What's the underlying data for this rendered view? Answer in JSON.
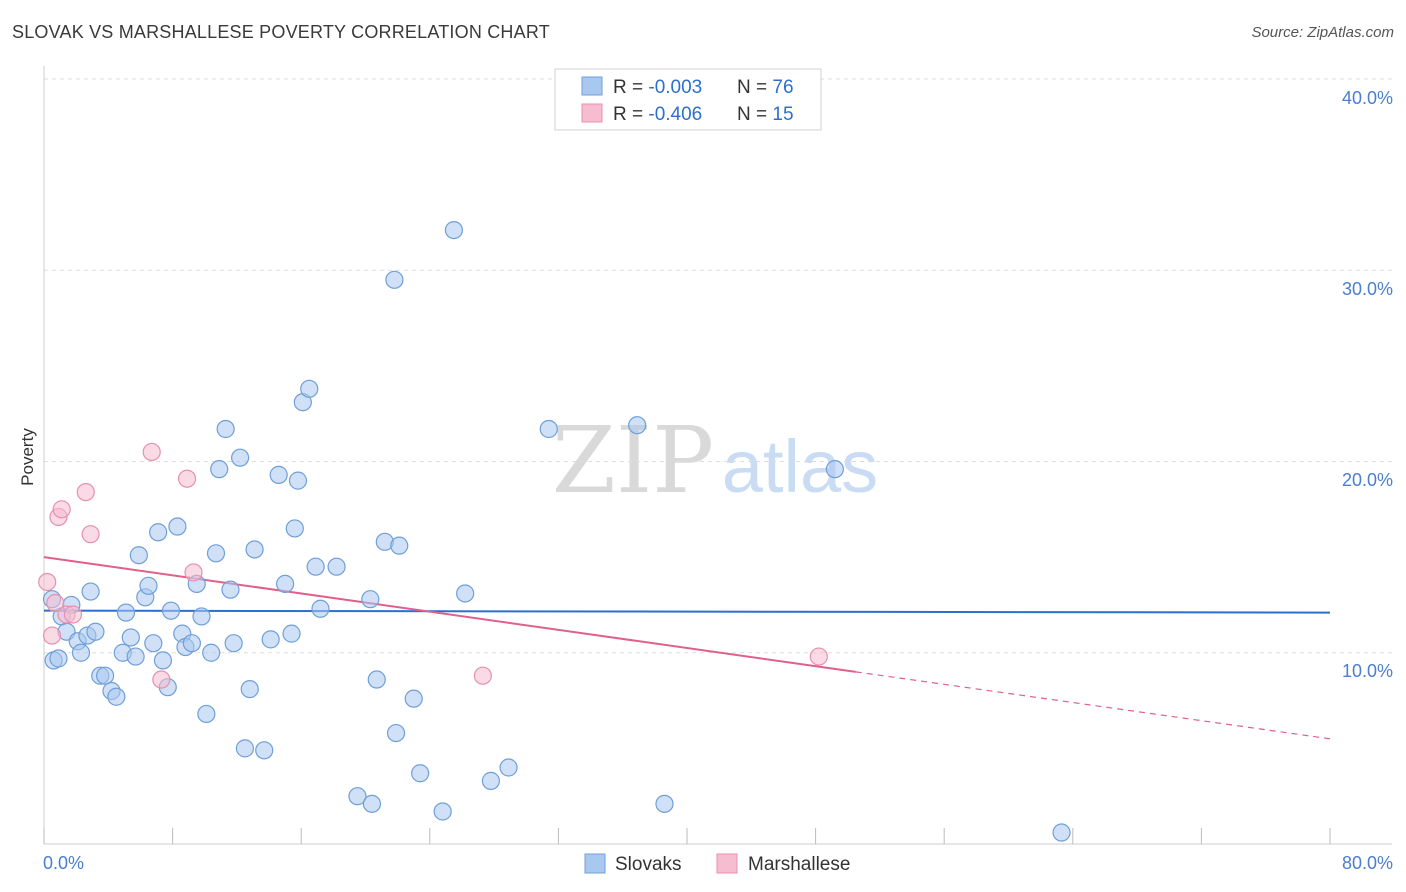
{
  "header": {
    "title": "SLOVAK VS MARSHALLESE POVERTY CORRELATION CHART",
    "source": "Source: ZipAtlas.com"
  },
  "watermark": {
    "part1": "ZIP",
    "part2": "atlas"
  },
  "colors": {
    "slovaks_fill": "#a9c8f0",
    "slovaks_stroke": "#6f9fd8",
    "slovaks_line": "#2d6fcc",
    "marshallese_fill": "#f6bcd0",
    "marshallese_stroke": "#e890ae",
    "marshallese_line": "#e0608a",
    "tick_label": "#4a7fcc",
    "grid": "#dddddd"
  },
  "legend": {
    "rows": [
      {
        "r_label": "R = ",
        "r_value": "-0.003",
        "n_label": "N = ",
        "n_value": "76"
      },
      {
        "r_label": "R = ",
        "r_value": "-0.406",
        "n_label": "N = ",
        "n_value": "15"
      }
    ]
  },
  "bottom_legend": {
    "items": [
      "Slovaks",
      "Marshallese"
    ]
  },
  "chart_data": {
    "type": "scatter",
    "ylabel": "Poverty",
    "xlim": [
      0,
      80
    ],
    "ylim": [
      0,
      40
    ],
    "x_tick_labels": [
      "0.0%",
      "80.0%"
    ],
    "y_ticks": [
      10,
      20,
      30,
      40
    ],
    "y_tick_labels": [
      "10.0%",
      "20.0%",
      "30.0%",
      "40.0%"
    ],
    "grid": "horizontal dashed",
    "legend_position": "top-center",
    "series": [
      {
        "name": "Slovaks",
        "trend": {
          "x": [
            0,
            80
          ],
          "y": [
            12.2,
            12.1
          ]
        },
        "points": [
          [
            0.5,
            12.8
          ],
          [
            0.6,
            9.6
          ],
          [
            0.9,
            9.7
          ],
          [
            1.1,
            11.9
          ],
          [
            1.4,
            11.1
          ],
          [
            1.7,
            12.5
          ],
          [
            2.1,
            10.6
          ],
          [
            2.3,
            10.0
          ],
          [
            2.7,
            10.9
          ],
          [
            2.9,
            13.2
          ],
          [
            3.2,
            11.1
          ],
          [
            3.5,
            8.8
          ],
          [
            3.8,
            8.8
          ],
          [
            4.2,
            8.0
          ],
          [
            4.5,
            7.7
          ],
          [
            4.9,
            10.0
          ],
          [
            5.1,
            12.1
          ],
          [
            5.4,
            10.8
          ],
          [
            5.7,
            9.8
          ],
          [
            5.9,
            15.1
          ],
          [
            6.3,
            12.9
          ],
          [
            6.5,
            13.5
          ],
          [
            6.8,
            10.5
          ],
          [
            7.1,
            16.3
          ],
          [
            7.4,
            9.6
          ],
          [
            7.7,
            8.2
          ],
          [
            7.9,
            12.2
          ],
          [
            8.3,
            16.6
          ],
          [
            8.6,
            11.0
          ],
          [
            8.8,
            10.3
          ],
          [
            9.2,
            10.5
          ],
          [
            9.5,
            13.6
          ],
          [
            9.8,
            11.9
          ],
          [
            10.1,
            6.8
          ],
          [
            10.4,
            10.0
          ],
          [
            10.7,
            15.2
          ],
          [
            10.9,
            19.6
          ],
          [
            11.3,
            21.7
          ],
          [
            11.6,
            13.3
          ],
          [
            11.8,
            10.5
          ],
          [
            12.2,
            20.2
          ],
          [
            12.5,
            5.0
          ],
          [
            12.8,
            8.1
          ],
          [
            13.1,
            15.4
          ],
          [
            13.7,
            4.9
          ],
          [
            14.1,
            10.7
          ],
          [
            14.6,
            19.3
          ],
          [
            15.0,
            13.6
          ],
          [
            15.4,
            11.0
          ],
          [
            15.6,
            16.5
          ],
          [
            15.8,
            19.0
          ],
          [
            16.1,
            23.1
          ],
          [
            16.5,
            23.8
          ],
          [
            16.9,
            14.5
          ],
          [
            17.2,
            12.3
          ],
          [
            18.2,
            14.5
          ],
          [
            19.5,
            2.5
          ],
          [
            20.3,
            12.8
          ],
          [
            20.4,
            2.1
          ],
          [
            20.7,
            8.6
          ],
          [
            21.2,
            15.8
          ],
          [
            21.8,
            29.5
          ],
          [
            21.9,
            5.8
          ],
          [
            22.1,
            15.6
          ],
          [
            23.0,
            7.6
          ],
          [
            23.4,
            3.7
          ],
          [
            24.8,
            1.7
          ],
          [
            25.5,
            32.1
          ],
          [
            26.2,
            13.1
          ],
          [
            27.8,
            3.3
          ],
          [
            28.9,
            4.0
          ],
          [
            31.4,
            21.7
          ],
          [
            36.9,
            21.9
          ],
          [
            38.6,
            2.1
          ],
          [
            49.2,
            19.6
          ],
          [
            63.3,
            0.6
          ]
        ]
      },
      {
        "name": "Marshallese",
        "trend": {
          "x": [
            0,
            50.5
          ],
          "y": [
            15.0,
            9.0
          ]
        },
        "trend_dashed": {
          "x": [
            50.5,
            80
          ],
          "y": [
            9.0,
            5.5
          ]
        },
        "points": [
          [
            0.2,
            13.7
          ],
          [
            0.5,
            10.9
          ],
          [
            0.7,
            12.6
          ],
          [
            0.9,
            17.1
          ],
          [
            1.1,
            17.5
          ],
          [
            1.4,
            12.0
          ],
          [
            1.8,
            12.0
          ],
          [
            2.6,
            18.4
          ],
          [
            2.9,
            16.2
          ],
          [
            6.7,
            20.5
          ],
          [
            7.3,
            8.6
          ],
          [
            8.9,
            19.1
          ],
          [
            9.3,
            14.2
          ],
          [
            27.3,
            8.8
          ],
          [
            48.2,
            9.8
          ]
        ]
      }
    ]
  }
}
